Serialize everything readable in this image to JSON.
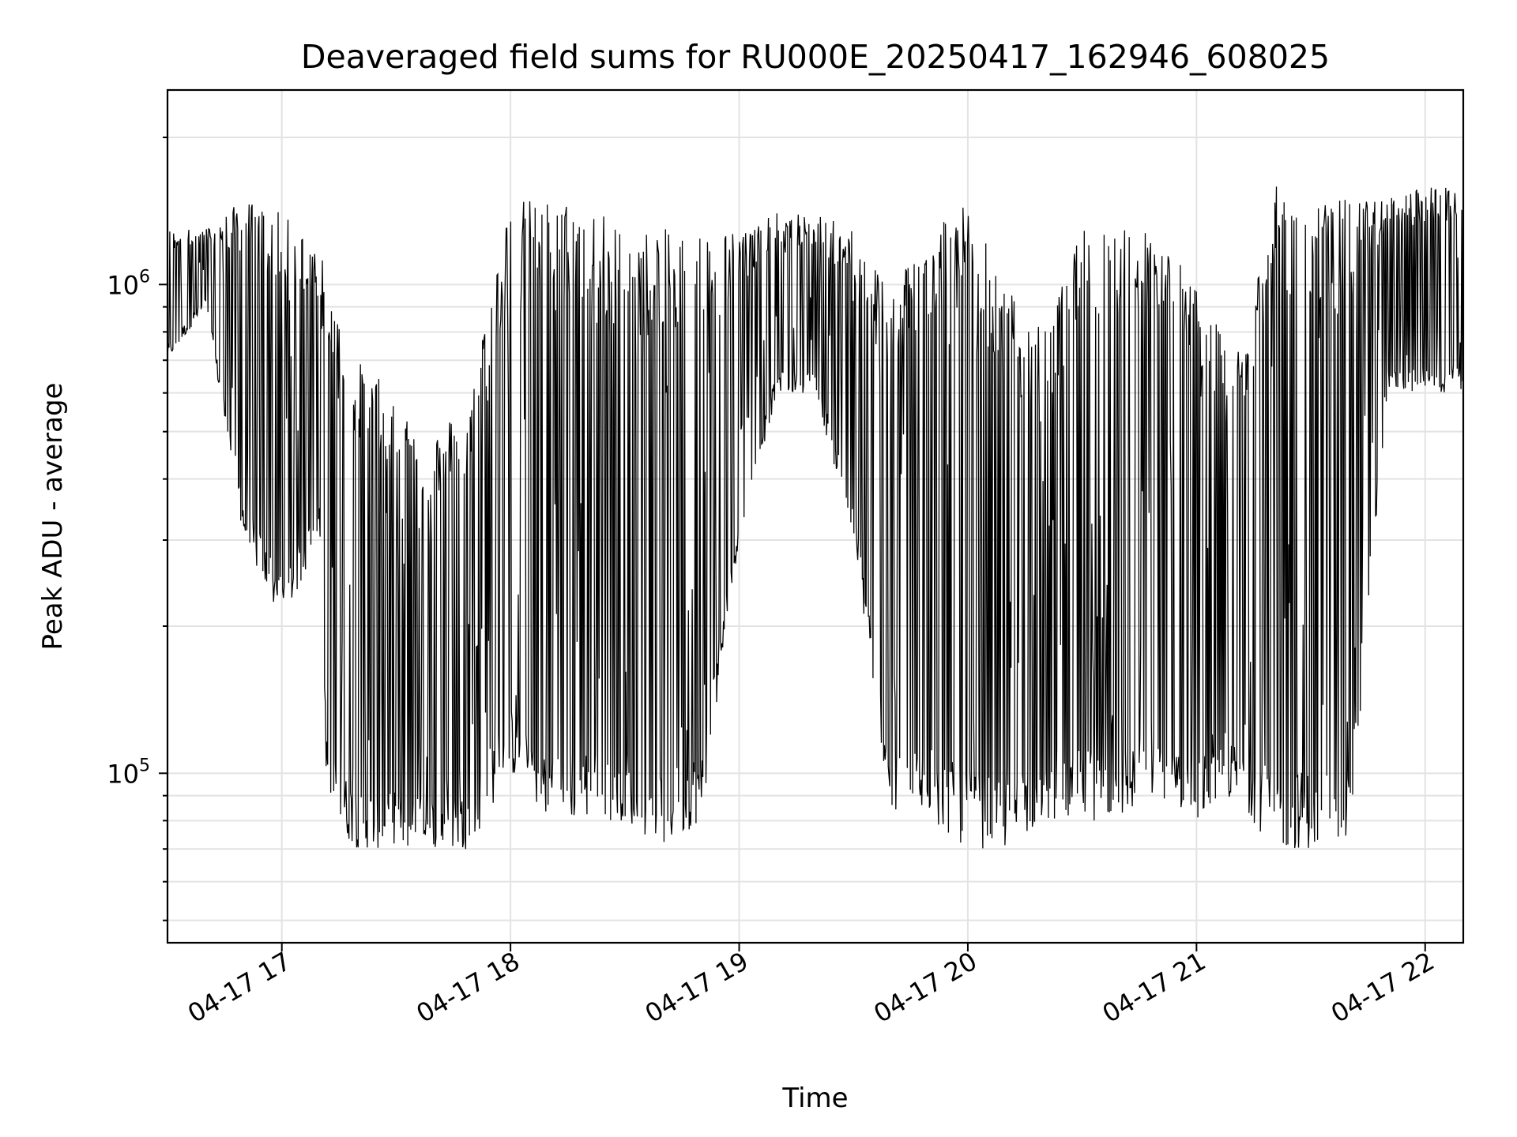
{
  "chart_data": {
    "type": "line",
    "title": "Deaveraged field sums for RU000E_20250417_162946_608025",
    "xlabel": "Time",
    "ylabel": "Peak ADU - average",
    "yscale": "log",
    "ylim": [
      45000,
      2500000
    ],
    "xlim": [
      "2025-04-17 16:30",
      "2025-04-17 22:10"
    ],
    "grid": true,
    "x_ticks": [
      "04-17 17",
      "04-17 18",
      "04-17 19",
      "04-17 20",
      "04-17 21",
      "04-17 22"
    ],
    "y_ticks": [
      {
        "base": "10",
        "exp": "5",
        "value": 100000
      },
      {
        "base": "10",
        "exp": "6",
        "value": 1000000
      }
    ],
    "line_color": "#000000",
    "series": [
      {
        "x": [
          "2025-04-17 16:30",
          "2025-04-17 16:40",
          "2025-04-17 16:50",
          "2025-04-17 17:00",
          "2025-04-17 17:10",
          "2025-04-17 17:12",
          "2025-04-17 17:20",
          "2025-04-17 17:30",
          "2025-04-17 17:40",
          "2025-04-17 17:50",
          "2025-04-17 17:53",
          "2025-04-17 18:00",
          "2025-04-17 18:10",
          "2025-04-17 18:20",
          "2025-04-17 18:30",
          "2025-04-17 18:40",
          "2025-04-17 18:50",
          "2025-04-17 19:00",
          "2025-04-17 19:10",
          "2025-04-17 19:20",
          "2025-04-17 19:30",
          "2025-04-17 19:40",
          "2025-04-17 19:50",
          "2025-04-17 20:00",
          "2025-04-17 20:10",
          "2025-04-17 20:20",
          "2025-04-17 20:30",
          "2025-04-17 20:40",
          "2025-04-17 20:50",
          "2025-04-17 21:00",
          "2025-04-17 21:10",
          "2025-04-17 21:20",
          "2025-04-17 21:30",
          "2025-04-17 21:40",
          "2025-04-17 21:50",
          "2025-04-17 22:00",
          "2025-04-17 22:10"
        ],
        "lo": [
          700000,
          900000,
          300000,
          200000,
          300000,
          80000,
          70000,
          70000,
          70000,
          70000,
          80000,
          100000,
          80000,
          80000,
          80000,
          70000,
          80000,
          300000,
          600000,
          600000,
          300000,
          80000,
          80000,
          70000,
          70000,
          80000,
          80000,
          80000,
          90000,
          80000,
          90000,
          70000,
          70000,
          70000,
          600000,
          600000,
          600000
        ],
        "hi": [
          1300000,
          1300000,
          1500000,
          1400000,
          1200000,
          1000000,
          700000,
          600000,
          500000,
          600000,
          900000,
          1500000,
          1500000,
          1500000,
          1300000,
          1300000,
          1300000,
          1300000,
          1400000,
          1400000,
          1300000,
          1000000,
          1400000,
          1500000,
          1000000,
          800000,
          1300000,
          1400000,
          1300000,
          1000000,
          700000,
          1600000,
          1500000,
          1500000,
          1500000,
          1600000,
          1600000
        ]
      }
    ]
  }
}
